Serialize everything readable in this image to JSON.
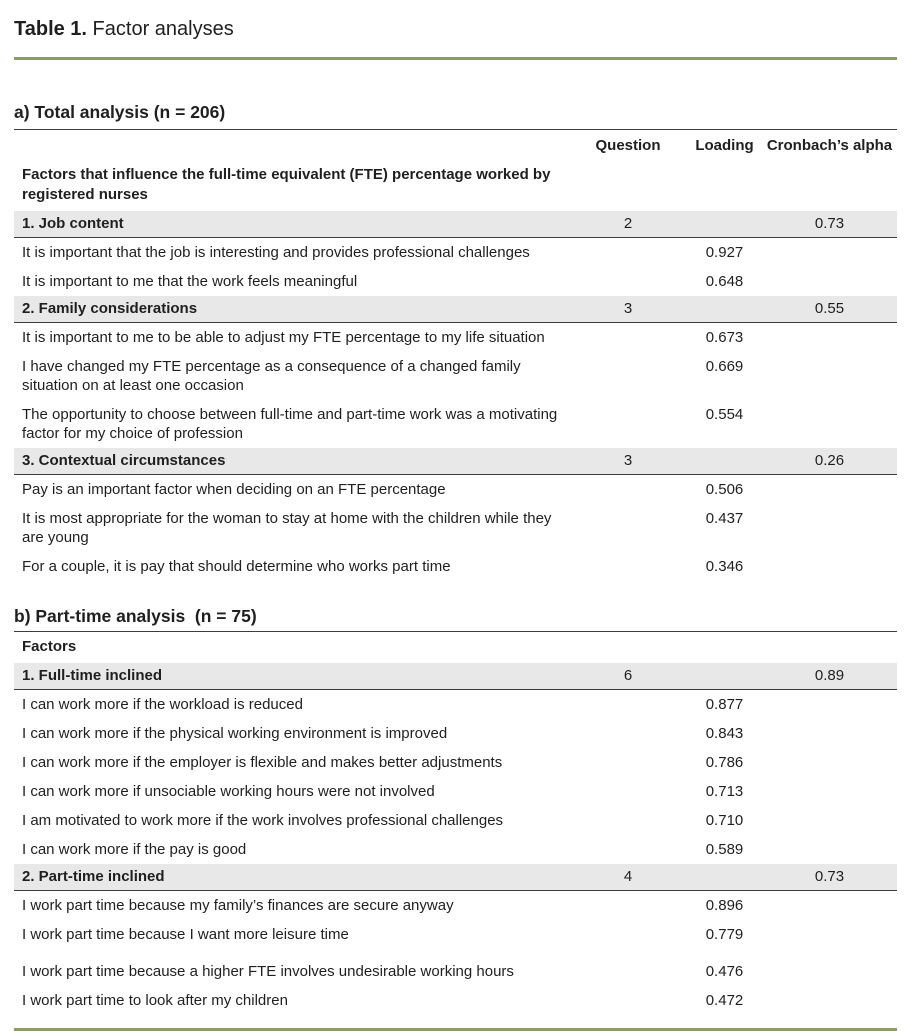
{
  "page": {
    "title_label": "Table 1.",
    "title_text": " Factor analyses"
  },
  "colors": {
    "accent_rule": "#8c9d63",
    "factor_row_highlight": "#e8e8e8",
    "table_rule": "#3c3c3c",
    "text": "#1f1f1f"
  },
  "sections": [
    {
      "heading": "a) Total analysis (n = 206)",
      "columns": {
        "question": "Question",
        "loading": "Loading",
        "cronbach": "Cronbach’s alpha"
      },
      "subheading": "Factors that influence the full-time equivalent (FTE) percentage worked by registered nurses",
      "factors": [
        {
          "name": "1. Job content",
          "question": "2",
          "cronbach": "0.73",
          "items": [
            {
              "text": "It is important that the job is interesting and provides professional challenges",
              "loading": "0.927"
            },
            {
              "text": "It is important to me that the work feels meaningful",
              "loading": "0.648"
            }
          ]
        },
        {
          "name": "2. Family considerations",
          "question": "3",
          "cronbach": "0.55",
          "items": [
            {
              "text": "It is important to me to be able to adjust my FTE percentage to my life situation",
              "loading": "0.673"
            },
            {
              "text": "I have changed my FTE percentage as a consequence of a changed family situation on at least one occasion",
              "loading": "0.669"
            },
            {
              "text": "The opportunity to choose between full-time and part-time work was a motivating factor for my choice of profession",
              "loading": "0.554"
            }
          ]
        },
        {
          "name": "3. Contextual circumstances",
          "question": "3",
          "cronbach": "0.26",
          "items": [
            {
              "text": "Pay is an important factor when deciding on an FTE percentage",
              "loading": "0.506"
            },
            {
              "text": "It is most appropriate for the woman to stay at home with the children while they are young",
              "loading": "0.437"
            },
            {
              "text": "For a couple, it is pay that should determine who works part time",
              "loading": "0.346"
            }
          ]
        }
      ]
    },
    {
      "heading": "b) Part-time analysis  (n = 75)",
      "subheading": "Factors",
      "factors": [
        {
          "name": "1. Full-time inclined",
          "question": "6",
          "cronbach": "0.89",
          "items": [
            {
              "text": "I can work more if the workload is reduced",
              "loading": "0.877"
            },
            {
              "text": "I can work more if the physical working environment is improved",
              "loading": "0.843"
            },
            {
              "text": "I can work more if the employer is flexible and makes better adjustments",
              "loading": "0.786"
            },
            {
              "text": "I can work more if unsociable working hours were not involved",
              "loading": "0.713"
            },
            {
              "text": "I am motivated to work more if the work involves professional challenges",
              "loading": "0.710"
            },
            {
              "text": "I can work more if the pay is good",
              "loading": "0.589"
            }
          ]
        },
        {
          "name": "2. Part-time inclined",
          "question": "4",
          "cronbach": "0.73",
          "items": [
            {
              "text": "I work part time because my family’s finances are secure anyway",
              "loading": "0.896"
            },
            {
              "text": "I work part time because I want more leisure time",
              "loading": "0.779"
            },
            {
              "text": "I work part time because a higher FTE involves undesirable working hours",
              "loading": "0.476"
            },
            {
              "text": "I work part time to look after my children",
              "loading": "0.472"
            }
          ]
        }
      ]
    }
  ]
}
